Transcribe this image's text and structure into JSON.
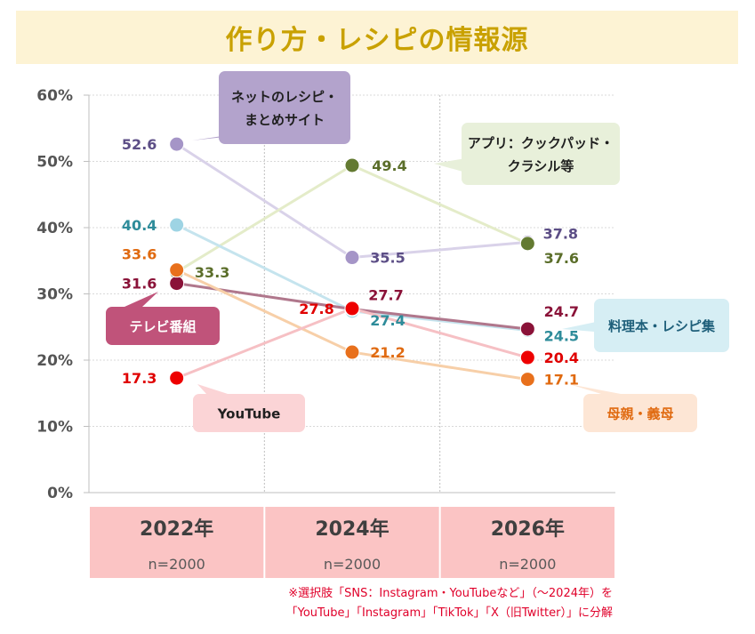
{
  "title": "作り方・レシピの情報源",
  "footnote": {
    "line1": "※選択肢「SNS：Instagram・YouTubeなど」（～2024年）を",
    "line2": "「YouTube」「Instagram」「TikTok」「X（旧Twitter）」に分解"
  },
  "chart_data": {
    "type": "line",
    "categories": [
      "2022年",
      "2024年",
      "2026年"
    ],
    "sample_sizes": [
      "n=2000",
      "n=2000",
      "n=2000"
    ],
    "y_ticks": [
      "0%",
      "10%",
      "20%",
      "30%",
      "40%",
      "50%",
      "60%"
    ],
    "ylim": [
      0,
      60
    ],
    "grid": true,
    "series": [
      {
        "name": "ネットのレシピ・まとめサイト",
        "name_lines": [
          "ネットのレシピ・",
          "まとめサイト"
        ],
        "values": [
          52.6,
          35.5,
          37.8
        ],
        "color": "#a595c7",
        "line_color": "#d9d2e9",
        "label_color": "#5c4e86",
        "callout_bg": "#b3a3cc",
        "callout_text": "#1f1f1f"
      },
      {
        "name": "アプリ：クックパッド・クラシル等",
        "name_lines": [
          "アプリ：クックパッド・",
          "クラシル等"
        ],
        "values": [
          33.3,
          49.4,
          37.6
        ],
        "color": "#637a31",
        "line_color": "#e4ecc9",
        "label_color": "#5b6e2a",
        "callout_bg": "#e8f0da",
        "callout_text": "#1f1f1f"
      },
      {
        "name": "料理本・レシピ集",
        "name_lines": [
          "料理本・レシピ集"
        ],
        "values": [
          40.4,
          27.4,
          24.5
        ],
        "color": "#9ed4e4",
        "line_color": "#c5e4ee",
        "label_color": "#2e8c9a",
        "callout_bg": "#d6eef4",
        "callout_text": "#1e5f7a"
      },
      {
        "name": "テレビ番組",
        "name_lines": [
          "テレビ番組"
        ],
        "values": [
          31.6,
          27.7,
          24.7
        ],
        "color": "#8a1238",
        "line_color": "#b0778c",
        "label_color": "#8a1238",
        "callout_bg": "#c0537a",
        "callout_text": "#ffffff"
      },
      {
        "name": "母親・義母",
        "name_lines": [
          "母親・義母"
        ],
        "values": [
          33.6,
          21.2,
          17.1
        ],
        "color": "#e8701c",
        "line_color": "#f7cfa8",
        "label_color": "#e06a10",
        "callout_bg": "#fde6d5",
        "callout_text": "#e06a10"
      },
      {
        "name": "YouTube",
        "name_lines": [
          "YouTube"
        ],
        "values": [
          17.3,
          27.8,
          20.4
        ],
        "color": "#ee0000",
        "line_color": "#f6c0c4",
        "label_color": "#e00000",
        "callout_bg": "#fbd4d6",
        "callout_text": "#1f1f1f"
      }
    ]
  }
}
